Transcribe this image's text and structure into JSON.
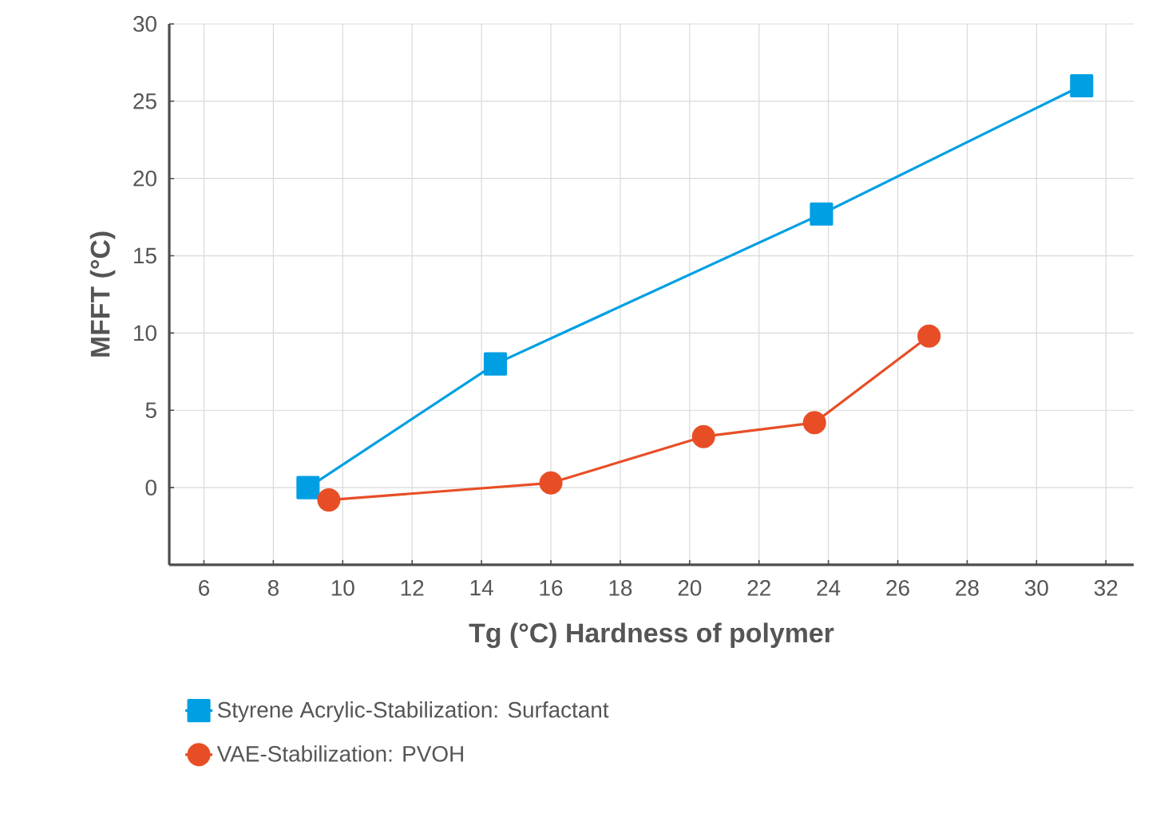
{
  "chart_data": {
    "type": "line",
    "xlabel": "Tg (°C) Hardness of polymer",
    "ylabel": "MFFT (°C)",
    "series": [
      {
        "name": "Styrene Acrylic-Stabilization: Surfactant",
        "color": "#009fe3",
        "marker": "square",
        "x": [
          9.0,
          14.4,
          23.8,
          31.3
        ],
        "values": [
          0,
          8.0,
          17.7,
          26
        ]
      },
      {
        "name": "VAE-Stabilization: PVOH",
        "color": "#e84e26",
        "marker": "circle",
        "x": [
          9.6,
          16.0,
          20.4,
          23.6,
          26.9
        ],
        "values": [
          -0.8,
          0.3,
          3.3,
          4.2,
          9.8
        ]
      }
    ],
    "xlim": [
      5,
      32.8
    ],
    "ylim": [
      -5,
      30
    ],
    "xticks": [
      6,
      8,
      10,
      12,
      14,
      16,
      18,
      20,
      22,
      24,
      26,
      28,
      30,
      32
    ],
    "yticks": [
      0,
      5,
      10,
      15,
      20,
      25,
      30
    ],
    "grid": true,
    "legend": "bottom left",
    "line_style": "solid"
  }
}
